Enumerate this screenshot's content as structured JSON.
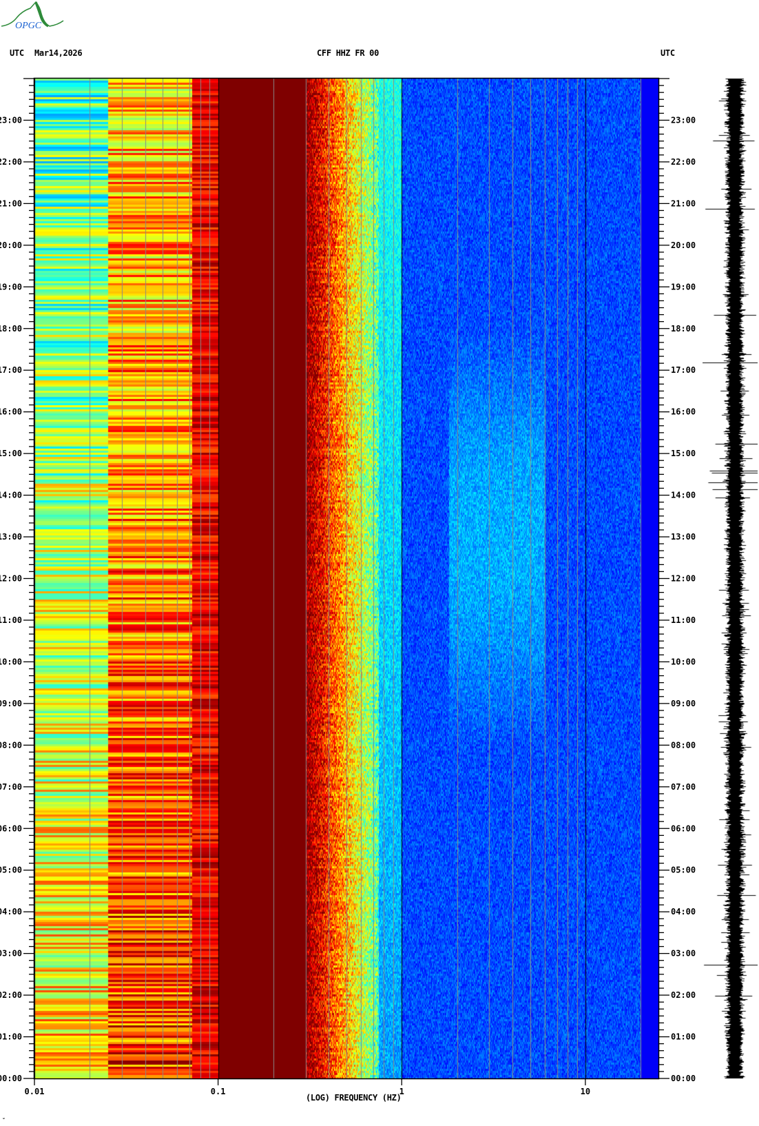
{
  "header": {
    "left_tz": "UTC",
    "date": "Mar14,2026",
    "station": "CFF HHZ FR 00",
    "right_tz": "UTC",
    "logo_text": "OPGC"
  },
  "footer_mark": "̈́",
  "colors": {
    "colormap": "jet",
    "gridline": "#888888",
    "decade_line": "#000000",
    "trace": "#000000",
    "logo_green": "#2e8b3a",
    "logo_blue": "#1e64d2"
  },
  "chart_data": {
    "type": "heatmap",
    "title": "CFF HHZ FR 00",
    "xlabel": "(LOG) FREQUENCY (HZ)",
    "ylabel": "",
    "x_scale": "log",
    "xlim": [
      0.01,
      25
    ],
    "x_ticks": [
      {
        "value": 0.01,
        "label": "0.01"
      },
      {
        "value": 0.1,
        "label": "0.1"
      },
      {
        "value": 1,
        "label": "1"
      },
      {
        "value": 10,
        "label": "10"
      }
    ],
    "ylim_hours": [
      0,
      24
    ],
    "y_ticks": [
      "00:00",
      "01:00",
      "02:00",
      "03:00",
      "04:00",
      "05:00",
      "06:00",
      "07:00",
      "08:00",
      "09:00",
      "10:00",
      "11:00",
      "12:00",
      "13:00",
      "14:00",
      "15:00",
      "16:00",
      "17:00",
      "18:00",
      "19:00",
      "20:00",
      "21:00",
      "22:00",
      "23:00"
    ],
    "y_minor_tick_minutes": 10,
    "grid_frequencies": [
      0.02,
      0.03,
      0.04,
      0.05,
      0.06,
      0.07,
      0.08,
      0.09,
      0.2,
      0.3,
      0.4,
      0.5,
      0.6,
      0.7,
      0.8,
      0.9,
      2,
      3,
      4,
      5,
      6,
      7,
      8,
      9,
      20
    ],
    "bands": [
      {
        "fmin": 0.01,
        "fmax": 0.025,
        "level_top": 0.45,
        "level_bottom": 0.66
      },
      {
        "fmin": 0.025,
        "fmax": 0.072,
        "level_top": 0.68,
        "level_bottom": 0.82
      },
      {
        "fmin": 0.072,
        "fmax": 0.1,
        "level_top": 0.88,
        "level_bottom": 0.9
      },
      {
        "fmin": 0.1,
        "fmax": 0.3,
        "level_top": 1.0,
        "level_bottom": 1.0
      },
      {
        "fmin": 0.3,
        "fmax": 0.75,
        "level_top": 0.95,
        "level_bottom": 0.55
      },
      {
        "fmin": 0.75,
        "fmax": 1.0,
        "level_top": 0.4,
        "level_bottom": 0.28
      },
      {
        "fmin": 1.0,
        "fmax": 20,
        "level_top": 0.2,
        "level_bottom": 0.2
      },
      {
        "fmin": 20,
        "fmax": 25,
        "level_top": 0.12,
        "level_bottom": 0.12
      }
    ],
    "quiet_hours_enhanced": [
      8,
      18
    ]
  }
}
